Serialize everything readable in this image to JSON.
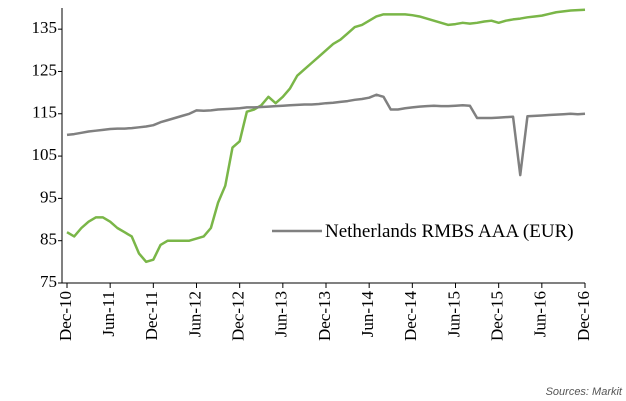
{
  "chart_data": {
    "type": "line",
    "x": [
      "Dec-10",
      "Jan-11",
      "Feb-11",
      "Mar-11",
      "Apr-11",
      "May-11",
      "Jun-11",
      "Jul-11",
      "Aug-11",
      "Sep-11",
      "Oct-11",
      "Nov-11",
      "Dec-11",
      "Jan-12",
      "Feb-12",
      "Mar-12",
      "Apr-12",
      "May-12",
      "Jun-12",
      "Jul-12",
      "Aug-12",
      "Sep-12",
      "Oct-12",
      "Nov-12",
      "Dec-12",
      "Jan-13",
      "Feb-13",
      "Mar-13",
      "Apr-13",
      "May-13",
      "Jun-13",
      "Jul-13",
      "Aug-13",
      "Sep-13",
      "Oct-13",
      "Nov-13",
      "Dec-13",
      "Jan-14",
      "Feb-14",
      "Mar-14",
      "Apr-14",
      "May-14",
      "Jun-14",
      "Jul-14",
      "Aug-14",
      "Sep-14",
      "Oct-14",
      "Nov-14",
      "Dec-14",
      "Jan-15",
      "Feb-15",
      "Mar-15",
      "Apr-15",
      "May-15",
      "Jun-15",
      "Jul-15",
      "Aug-15",
      "Sep-15",
      "Oct-15",
      "Nov-15",
      "Dec-15",
      "Jan-16",
      "Feb-16",
      "Mar-16",
      "Apr-16",
      "May-16",
      "Jun-16",
      "Jul-16",
      "Aug-16",
      "Sep-16",
      "Oct-16",
      "Nov-16",
      "Dec-16"
    ],
    "xticks": [
      "Dec-10",
      "Jun-11",
      "Dec-11",
      "Jun-12",
      "Dec-12",
      "Jun-13",
      "Dec-13",
      "Jun-14",
      "Dec-14",
      "Jun-15",
      "Dec-15",
      "Jun-16",
      "Dec-16"
    ],
    "series": [
      {
        "color": "#7ab648",
        "values": [
          87,
          86,
          88,
          89.5,
          90.5,
          90.5,
          89.5,
          88,
          87,
          86,
          82,
          80,
          80.5,
          84,
          85,
          85,
          85,
          85,
          85.5,
          86,
          88,
          94,
          98,
          107,
          108.5,
          115.5,
          116,
          117,
          119,
          117.5,
          119,
          121,
          124,
          125.5,
          127,
          128.5,
          130,
          131.5,
          132.5,
          134,
          135.5,
          136,
          137,
          138,
          138.5,
          138.5,
          138.5,
          138.5,
          138.3,
          138,
          137.5,
          137,
          136.5,
          136,
          136.2,
          136.5,
          136.3,
          136.5,
          136.8,
          137,
          136.5,
          137,
          137.3,
          137.5,
          137.8,
          138,
          138.2,
          138.6,
          139,
          139.2,
          139.4,
          139.5,
          139.6
        ]
      },
      {
        "name": "Netherlands RMBS AAA (EUR)",
        "color": "#808080",
        "values": [
          110,
          110.2,
          110.5,
          110.8,
          111,
          111.2,
          111.4,
          111.5,
          111.5,
          111.6,
          111.8,
          112,
          112.3,
          113,
          113.5,
          114,
          114.5,
          115,
          115.8,
          115.7,
          115.8,
          116,
          116.1,
          116.2,
          116.3,
          116.5,
          116.5,
          116.6,
          116.7,
          116.8,
          116.9,
          117,
          117.1,
          117.2,
          117.2,
          117.3,
          117.5,
          117.6,
          117.8,
          118,
          118.3,
          118.5,
          118.8,
          119.5,
          119,
          116,
          116,
          116.3,
          116.5,
          116.7,
          116.8,
          116.9,
          116.8,
          116.8,
          116.9,
          117,
          116.9,
          114,
          114,
          114,
          114.1,
          114.2,
          114.3,
          100.5,
          114.4,
          114.5,
          114.6,
          114.7,
          114.8,
          114.9,
          115,
          114.9,
          115
        ]
      }
    ],
    "ylim": [
      75,
      140
    ],
    "yticks": [
      75,
      85,
      95,
      105,
      115,
      125,
      135
    ],
    "source": "Sources: Markit"
  }
}
